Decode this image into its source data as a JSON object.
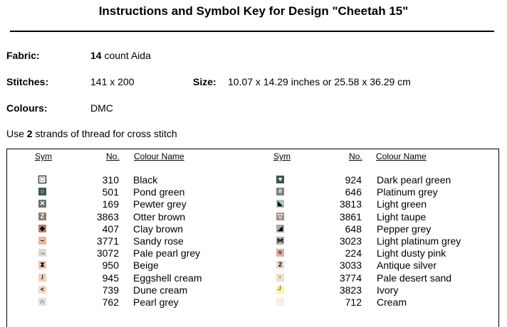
{
  "title": "Instructions and Symbol Key for Design \"Cheetah 15\"",
  "info": {
    "fabric_label": "Fabric:",
    "fabric_count": "14",
    "fabric_rest": " count Aida",
    "stitches_label": "Stitches:",
    "stitches_value": "141 x 200",
    "size_label": "Size:",
    "size_value": "10.07 x 14.29 inches or 25.58 x 36.29 cm",
    "colours_label": "Colours:",
    "colours_value": "DMC",
    "strands_pre": "Use ",
    "strands_count": "2",
    "strands_post": " strands of thread for cross stitch"
  },
  "table": {
    "headers": {
      "sym": "Sym",
      "no": "No.",
      "name": "Colour Name"
    },
    "left": [
      {
        "no": "310",
        "name": "Black",
        "bg": "#ffffff",
        "fg": "#000000",
        "glyph": "□",
        "icon": "hollow-square-icon"
      },
      {
        "no": "501",
        "name": "Pond green",
        "bg": "#3e5a55",
        "fg": "#ffffff",
        "glyph": "○",
        "icon": "circle-icon"
      },
      {
        "no": "169",
        "name": "Pewter grey",
        "bg": "#6f7276",
        "fg": "#ffffff",
        "glyph": "✕",
        "icon": "x-icon"
      },
      {
        "no": "3863",
        "name": "Otter brown",
        "bg": "#8f7b6c",
        "fg": "#ffffff",
        "glyph": "Z",
        "icon": "z-icon"
      },
      {
        "no": "407",
        "name": "Clay brown",
        "bg": "#b97f68",
        "fg": "#000000",
        "glyph": "◆",
        "icon": "diamond-icon"
      },
      {
        "no": "3771",
        "name": "Sandy rose",
        "bg": "#eeb698",
        "fg": "#000000",
        "glyph": "–",
        "icon": "dash-icon"
      },
      {
        "no": "3072",
        "name": "Pale pearl grey",
        "bg": "#d8dcd5",
        "fg": "#000000",
        "glyph": "→",
        "icon": "arrow-right-icon"
      },
      {
        "no": "950",
        "name": "Beige",
        "bg": "#eec5ac",
        "fg": "#000000",
        "glyph": "⧗",
        "icon": "hourglass-icon"
      },
      {
        "no": "945",
        "name": "Eggshell cream",
        "bg": "#f4cfb3",
        "fg": "#000000",
        "glyph": "/",
        "icon": "slash-icon"
      },
      {
        "no": "739",
        "name": "Dune cream",
        "bg": "#f4ddc1",
        "fg": "#000000",
        "glyph": "<",
        "icon": "less-than-icon"
      },
      {
        "no": "762",
        "name": "Pearl grey",
        "bg": "#dfe0e2",
        "fg": "#000000",
        "glyph": "∩",
        "icon": "arch-icon"
      }
    ],
    "right": [
      {
        "no": "924",
        "name": "Dark pearl green",
        "bg": "#3f5455",
        "fg": "#ffffff",
        "glyph": "♥",
        "icon": "heart-icon"
      },
      {
        "no": "646",
        "name": "Platinum grey",
        "bg": "#7e807b",
        "fg": "#ffffff",
        "glyph": "#",
        "icon": "hash-icon"
      },
      {
        "no": "3813",
        "name": "Light green",
        "bg": "#a8c7b6",
        "fg": "#000000",
        "glyph": "◣",
        "icon": "triangle-icon"
      },
      {
        "no": "3861",
        "name": "Light taupe",
        "bg": "#a68f86",
        "fg": "#ffffff",
        "glyph": "▽",
        "icon": "down-triangle-icon"
      },
      {
        "no": "648",
        "name": "Pepper grey",
        "bg": "#a9aaa7",
        "fg": "#000000",
        "glyph": "◢",
        "icon": "corner-triangle-icon"
      },
      {
        "no": "3023",
        "name": "Light platinum grey",
        "bg": "#b3ad9f",
        "fg": "#000000",
        "glyph": "⋈",
        "icon": "bowtie-icon"
      },
      {
        "no": "224",
        "name": "Light dusty pink",
        "bg": "#e6aaa1",
        "fg": "#000000",
        "glyph": "≈",
        "icon": "wavy-icon"
      },
      {
        "no": "3033",
        "name": "Antique silver",
        "bg": "#e3dccd",
        "fg": "#000000",
        "glyph": "2",
        "icon": "two-icon"
      },
      {
        "no": "3774",
        "name": "Pale desert sand",
        "bg": "#f4dccb",
        "fg": "#000000",
        "glyph": "·",
        "icon": "dot-icon"
      },
      {
        "no": "3823",
        "name": "Ivory",
        "bg": "#fbf0a8",
        "fg": "#000000",
        "glyph": "┘",
        "icon": "corner-icon"
      },
      {
        "no": "712",
        "name": "Cream",
        "bg": "#f6efe1",
        "fg": "#000000",
        "glyph": "",
        "icon": "blank-icon"
      }
    ]
  }
}
